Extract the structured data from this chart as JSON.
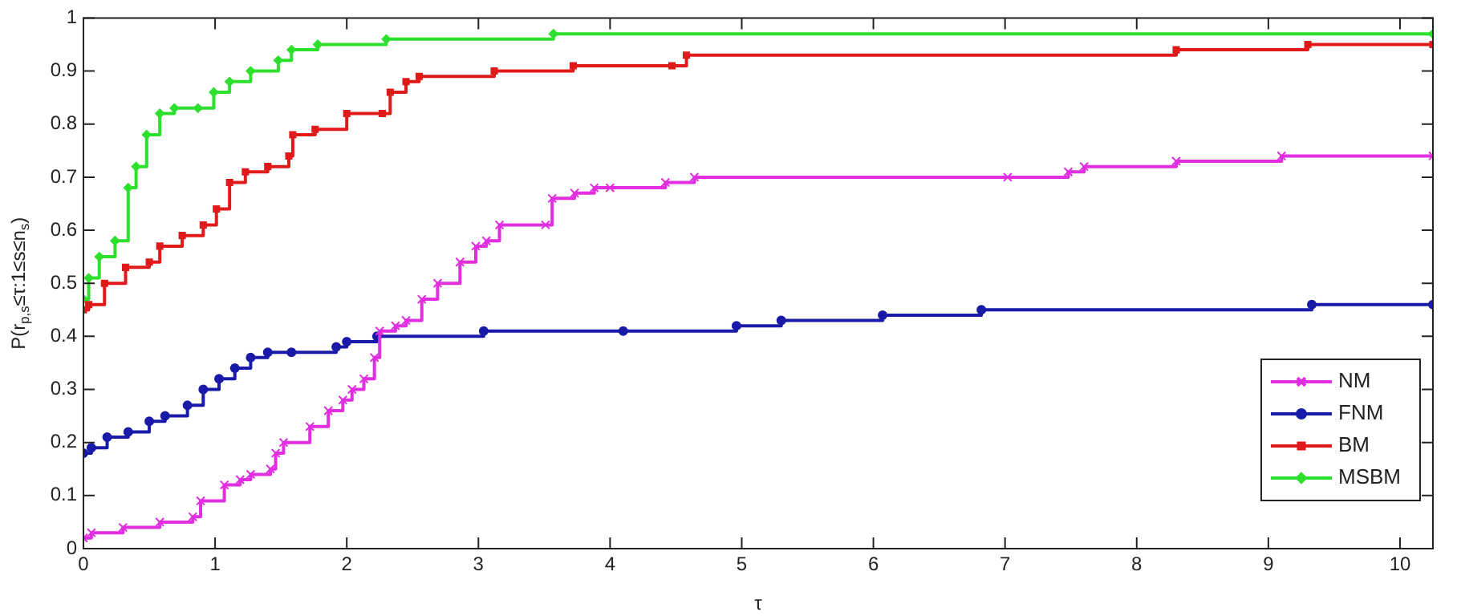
{
  "chart_data": {
    "type": "step",
    "xlabel": "τ",
    "ylabel": "P(r$_{p,s}$≤τ:1≤s≤n$_{s}$)",
    "xlim": [
      0,
      10.25
    ],
    "ylim": [
      0,
      1
    ],
    "xticks": [
      0,
      1,
      2,
      3,
      4,
      5,
      6,
      7,
      8,
      9,
      10
    ],
    "yticks": [
      0,
      0.1,
      0.2,
      0.3,
      0.4,
      0.5,
      0.6,
      0.7,
      0.8,
      0.9,
      1
    ],
    "grid": false,
    "legend": "bottom right",
    "line_style": "solid",
    "series": [
      {
        "name": "NM",
        "color": "#e02ee0",
        "marker": "cross",
        "x": [
          0,
          0.06,
          0.3,
          0.58,
          0.83,
          0.89,
          1.07,
          1.19,
          1.27,
          1.42,
          1.46,
          1.52,
          1.72,
          1.86,
          1.97,
          2.04,
          2.13,
          2.21,
          2.25,
          2.37,
          2.45,
          2.57,
          2.69,
          2.86,
          2.98,
          3.06,
          3.16,
          3.51,
          3.56,
          3.73,
          3.88,
          4.0,
          4.42,
          4.64,
          7.02,
          7.48,
          7.6,
          8.3,
          9.1,
          10.25
        ],
        "values": [
          0.02,
          0.03,
          0.04,
          0.05,
          0.06,
          0.09,
          0.12,
          0.13,
          0.14,
          0.15,
          0.18,
          0.2,
          0.23,
          0.26,
          0.28,
          0.3,
          0.32,
          0.36,
          0.41,
          0.42,
          0.43,
          0.47,
          0.5,
          0.54,
          0.57,
          0.58,
          0.61,
          0.61,
          0.66,
          0.67,
          0.68,
          0.68,
          0.69,
          0.7,
          0.7,
          0.71,
          0.72,
          0.73,
          0.74,
          0.74
        ]
      },
      {
        "name": "FNM",
        "color": "#1a1aa8",
        "marker": "circle",
        "x": [
          0,
          0.06,
          0.18,
          0.34,
          0.5,
          0.62,
          0.79,
          0.91,
          1.03,
          1.15,
          1.27,
          1.4,
          1.58,
          1.92,
          2.0,
          2.23,
          3.04,
          4.1,
          4.96,
          5.3,
          6.07,
          6.82,
          9.33,
          10.25
        ],
        "values": [
          0.18,
          0.19,
          0.21,
          0.22,
          0.24,
          0.25,
          0.27,
          0.3,
          0.32,
          0.34,
          0.36,
          0.37,
          0.37,
          0.38,
          0.39,
          0.4,
          0.41,
          0.41,
          0.42,
          0.43,
          0.44,
          0.45,
          0.46,
          0.46
        ]
      },
      {
        "name": "BM",
        "color": "#e01a1a",
        "marker": "square",
        "x": [
          0,
          0.04,
          0.16,
          0.32,
          0.5,
          0.58,
          0.75,
          0.91,
          1.01,
          1.11,
          1.23,
          1.4,
          1.56,
          1.59,
          1.76,
          2.0,
          2.27,
          2.33,
          2.45,
          2.55,
          3.12,
          3.72,
          4.47,
          4.58,
          8.3,
          9.3,
          10.25
        ],
        "values": [
          0.45,
          0.46,
          0.5,
          0.53,
          0.54,
          0.57,
          0.59,
          0.61,
          0.64,
          0.69,
          0.71,
          0.72,
          0.74,
          0.78,
          0.79,
          0.82,
          0.82,
          0.86,
          0.88,
          0.89,
          0.9,
          0.91,
          0.91,
          0.93,
          0.94,
          0.95,
          0.95
        ]
      },
      {
        "name": "MSBM",
        "color": "#2ee02e",
        "marker": "diamond",
        "x": [
          0,
          0.04,
          0.12,
          0.24,
          0.34,
          0.4,
          0.48,
          0.58,
          0.69,
          0.87,
          0.99,
          1.11,
          1.27,
          1.48,
          1.58,
          1.78,
          2.3,
          3.57,
          10.25
        ],
        "values": [
          0.47,
          0.51,
          0.55,
          0.58,
          0.68,
          0.72,
          0.78,
          0.82,
          0.83,
          0.83,
          0.86,
          0.88,
          0.9,
          0.92,
          0.94,
          0.95,
          0.96,
          0.97,
          0.97
        ]
      }
    ]
  }
}
